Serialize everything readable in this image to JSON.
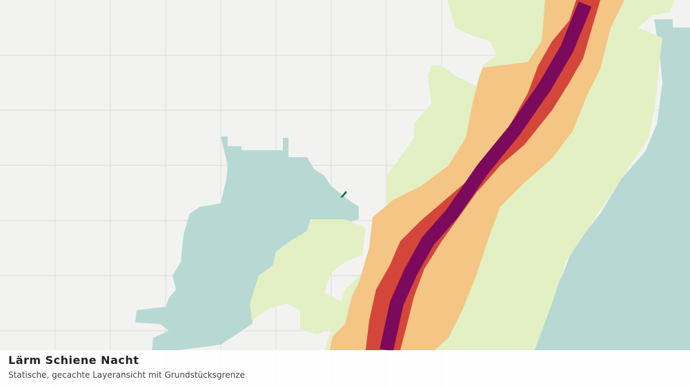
{
  "panel": {
    "title": "Lärm Schiene Nacht",
    "subtitle": "Statische, gecachte Layeransicht mit Grundstücksgrenze"
  }
}
